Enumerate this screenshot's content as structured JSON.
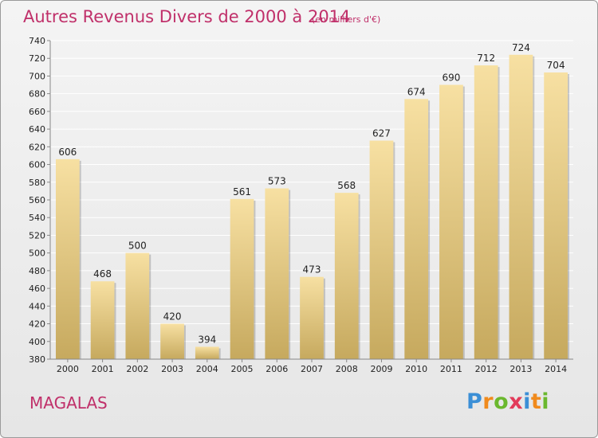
{
  "title": "Autres Revenus Divers de 2000 à 2014",
  "subtitle": "(en milliers d'€)",
  "commune": "MAGALAS",
  "logo": {
    "text": "Proxiti",
    "letters": [
      {
        "ch": "P",
        "color": "#3b8fd6"
      },
      {
        "ch": "r",
        "color": "#f08a1c"
      },
      {
        "ch": "o",
        "color": "#6bb82e"
      },
      {
        "ch": "x",
        "color": "#e23b5a"
      },
      {
        "ch": "i",
        "color": "#3b8fd6"
      },
      {
        "ch": "t",
        "color": "#f08a1c"
      },
      {
        "ch": "i",
        "color": "#6bb82e"
      }
    ]
  },
  "colors": {
    "title": "#c0306a",
    "bar_top": "#f7e0a2",
    "bar_bottom": "#c6a95e",
    "grid": "#ffffff",
    "text": "#222222"
  },
  "chart_data": {
    "type": "bar",
    "title": "Autres Revenus Divers de 2000 à 2014",
    "subtitle": "(en milliers d'€)",
    "categories": [
      "2000",
      "2001",
      "2002",
      "2003",
      "2004",
      "2005",
      "2006",
      "2007",
      "2008",
      "2009",
      "2010",
      "2011",
      "2012",
      "2013",
      "2014"
    ],
    "values": [
      606,
      468,
      500,
      420,
      394,
      561,
      573,
      473,
      568,
      627,
      674,
      690,
      712,
      724,
      704
    ],
    "ylim": [
      380,
      740
    ],
    "ytick_step": 20,
    "grid": true,
    "xlabel": "",
    "ylabel": ""
  }
}
